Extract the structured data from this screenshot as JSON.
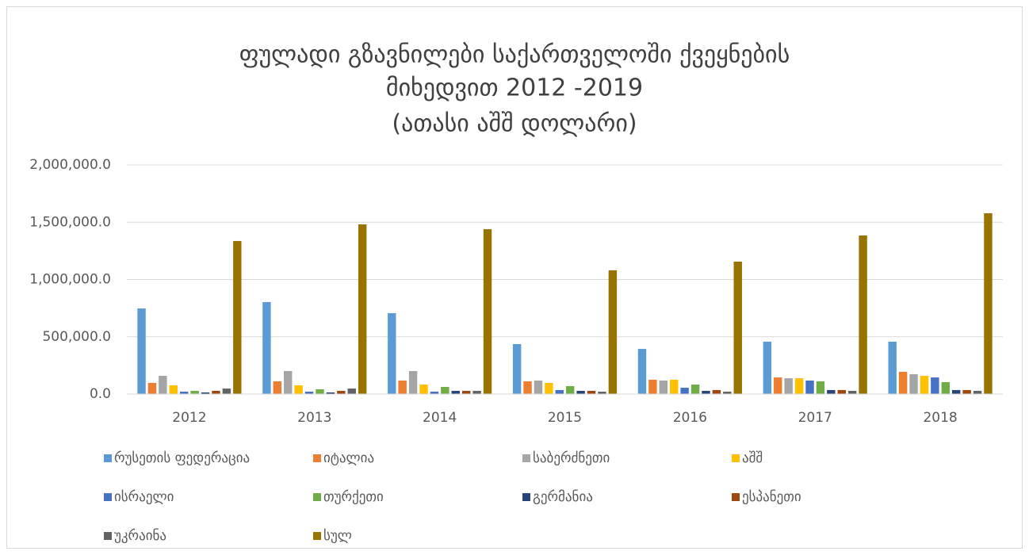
{
  "chart_data": {
    "type": "bar",
    "title": [
      "ფულადი  გზავნილები  საქართველოში  ქვეყნების",
      "მიხედვით 2012 -2019"
    ],
    "subtitle": "(ათასი აშშ დოლარი)",
    "categories": [
      "2012",
      "2013",
      "2014",
      "2015",
      "2016",
      "2017",
      "2018"
    ],
    "series": [
      {
        "name": "რუსეთის ფედერაცია",
        "color": "#5B9BD5",
        "values": [
          747000,
          803000,
          706000,
          436000,
          394000,
          457000,
          457000
        ]
      },
      {
        "name": "იტალია",
        "color": "#ED7D31",
        "values": [
          97000,
          111000,
          118000,
          111000,
          125000,
          145000,
          194000
        ]
      },
      {
        "name": "საბერძნეთი",
        "color": "#A5A5A5",
        "values": [
          159000,
          201000,
          201000,
          118000,
          118000,
          138000,
          173000
        ]
      },
      {
        "name": "აშშ",
        "color": "#FFC000",
        "values": [
          76000,
          76000,
          83000,
          97000,
          125000,
          138000,
          159000
        ]
      },
      {
        "name": "ისრაელი",
        "color": "#4472C4",
        "values": [
          21000,
          21000,
          21000,
          35000,
          55000,
          118000,
          145000
        ]
      },
      {
        "name": "თურქეთი",
        "color": "#70AD47",
        "values": [
          28000,
          42000,
          62000,
          69000,
          83000,
          111000,
          104000
        ]
      },
      {
        "name": "გერმანია",
        "color": "#264478",
        "values": [
          14000,
          14000,
          28000,
          28000,
          28000,
          35000,
          35000
        ]
      },
      {
        "name": "ესპანეთი",
        "color": "#9E480E",
        "values": [
          28000,
          28000,
          28000,
          28000,
          35000,
          35000,
          35000
        ]
      },
      {
        "name": "უკრაინა",
        "color": "#636363",
        "values": [
          48000,
          48000,
          28000,
          21000,
          21000,
          28000,
          28000
        ]
      },
      {
        "name": "სულ",
        "color": "#997300",
        "values": [
          1336000,
          1481000,
          1439000,
          1080000,
          1156000,
          1384000,
          1578000
        ]
      }
    ],
    "ylim": [
      0,
      2000000
    ],
    "yticks": [
      {
        "value": 0,
        "label": "0.0"
      },
      {
        "value": 500000,
        "label": "500,000.0"
      },
      {
        "value": 1000000,
        "label": "1,000,000.0"
      },
      {
        "value": 1500000,
        "label": "1,500,000.0"
      },
      {
        "value": 2000000,
        "label": "2,000,000.0"
      }
    ],
    "grid": true
  }
}
